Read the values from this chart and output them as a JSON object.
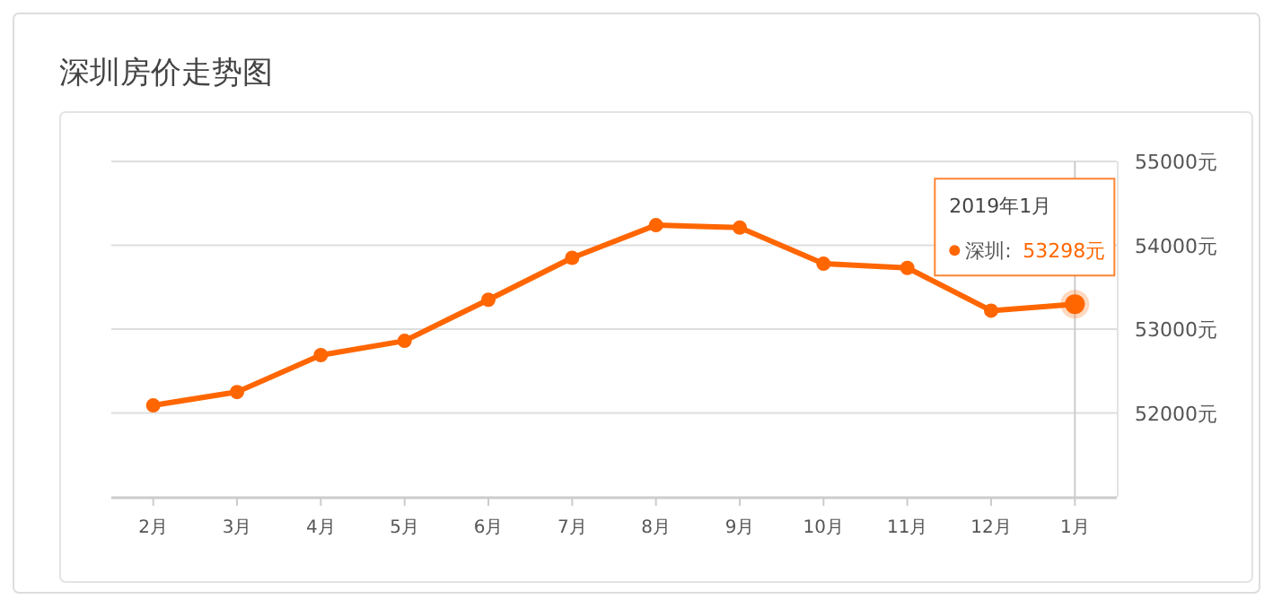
{
  "chart_data": {
    "type": "line",
    "title": "深圳房价走势图",
    "categories": [
      "2月",
      "3月",
      "4月",
      "5月",
      "6月",
      "7月",
      "8月",
      "9月",
      "10月",
      "11月",
      "12月",
      "1月"
    ],
    "series": [
      {
        "name": "深圳:",
        "color": "#ff6600",
        "values": [
          52090,
          52250,
          52690,
          52860,
          53350,
          53850,
          54240,
          54210,
          53780,
          53730,
          53220,
          53298
        ],
        "value_labels": [
          null,
          null,
          null,
          null,
          null,
          null,
          null,
          null,
          null,
          null,
          null,
          "53298元"
        ]
      }
    ],
    "ylim": [
      51000,
      55000
    ],
    "yticks": [
      {
        "value": 52000,
        "label": "52000元"
      },
      {
        "value": 53000,
        "label": "53000元"
      },
      {
        "value": 54000,
        "label": "54000元"
      },
      {
        "value": 55000,
        "label": "55000元"
      }
    ],
    "grid": "y",
    "marker": "circle",
    "line_style": "solid",
    "ref_lines": [
      {
        "axis": "x",
        "value": "1月",
        "color": "#cccccc"
      }
    ],
    "annotations": [
      "2019年1月"
    ]
  }
}
